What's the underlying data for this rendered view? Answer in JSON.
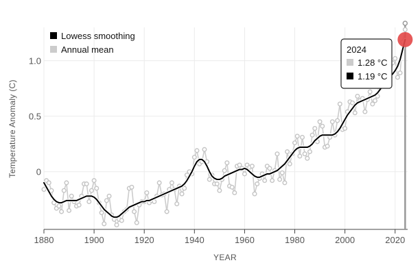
{
  "chart_data": {
    "type": "line",
    "xlabel": "YEAR",
    "ylabel": "Temperature Anomaly (C)",
    "xlim": [
      1880,
      2025
    ],
    "ylim": [
      -0.52,
      1.3
    ],
    "xticks": [
      1880,
      1900,
      1920,
      1940,
      1960,
      1980,
      2000,
      2020
    ],
    "yticks": [
      0,
      0.5,
      1.0
    ],
    "ytick_labels": [
      "0",
      "0.5",
      "1.0"
    ],
    "grid": true,
    "legend_position": "top-left",
    "colors": {
      "lowess": "#000000",
      "annual": "#cccccc",
      "highlight": "#e34848",
      "grid": "#ebebeb"
    },
    "x": [
      1880,
      1881,
      1882,
      1883,
      1884,
      1885,
      1886,
      1887,
      1888,
      1889,
      1890,
      1891,
      1892,
      1893,
      1894,
      1895,
      1896,
      1897,
      1898,
      1899,
      1900,
      1901,
      1902,
      1903,
      1904,
      1905,
      1906,
      1907,
      1908,
      1909,
      1910,
      1911,
      1912,
      1913,
      1914,
      1915,
      1916,
      1917,
      1918,
      1919,
      1920,
      1921,
      1922,
      1923,
      1924,
      1925,
      1926,
      1927,
      1928,
      1929,
      1930,
      1931,
      1932,
      1933,
      1934,
      1935,
      1936,
      1937,
      1938,
      1939,
      1940,
      1941,
      1942,
      1943,
      1944,
      1945,
      1946,
      1947,
      1948,
      1949,
      1950,
      1951,
      1952,
      1953,
      1954,
      1955,
      1956,
      1957,
      1958,
      1959,
      1960,
      1961,
      1962,
      1963,
      1964,
      1965,
      1966,
      1967,
      1968,
      1969,
      1970,
      1971,
      1972,
      1973,
      1974,
      1975,
      1976,
      1977,
      1978,
      1979,
      1980,
      1981,
      1982,
      1983,
      1984,
      1985,
      1986,
      1987,
      1988,
      1989,
      1990,
      1991,
      1992,
      1993,
      1994,
      1995,
      1996,
      1997,
      1998,
      1999,
      2000,
      2001,
      2002,
      2003,
      2004,
      2005,
      2006,
      2007,
      2008,
      2009,
      2010,
      2011,
      2012,
      2013,
      2014,
      2015,
      2016,
      2017,
      2018,
      2019,
      2020,
      2021,
      2022,
      2023,
      2024
    ],
    "series": [
      {
        "name": "Lowess smoothing",
        "values": [
          -0.1,
          -0.14,
          -0.18,
          -0.22,
          -0.25,
          -0.27,
          -0.28,
          -0.28,
          -0.27,
          -0.26,
          -0.26,
          -0.26,
          -0.26,
          -0.26,
          -0.25,
          -0.24,
          -0.23,
          -0.22,
          -0.22,
          -0.22,
          -0.23,
          -0.25,
          -0.28,
          -0.31,
          -0.34,
          -0.36,
          -0.38,
          -0.4,
          -0.41,
          -0.41,
          -0.4,
          -0.38,
          -0.36,
          -0.34,
          -0.32,
          -0.31,
          -0.3,
          -0.29,
          -0.28,
          -0.27,
          -0.27,
          -0.26,
          -0.26,
          -0.25,
          -0.24,
          -0.23,
          -0.22,
          -0.21,
          -0.2,
          -0.19,
          -0.18,
          -0.17,
          -0.16,
          -0.15,
          -0.14,
          -0.13,
          -0.11,
          -0.08,
          -0.04,
          0.0,
          0.05,
          0.09,
          0.11,
          0.11,
          0.09,
          0.05,
          0.0,
          -0.04,
          -0.06,
          -0.07,
          -0.07,
          -0.06,
          -0.04,
          -0.03,
          -0.02,
          -0.01,
          0.0,
          0.01,
          0.02,
          0.02,
          0.03,
          0.02,
          0.0,
          -0.02,
          -0.04,
          -0.05,
          -0.05,
          -0.04,
          -0.03,
          -0.02,
          -0.02,
          -0.01,
          0.0,
          0.01,
          0.03,
          0.05,
          0.07,
          0.1,
          0.13,
          0.16,
          0.19,
          0.21,
          0.22,
          0.22,
          0.22,
          0.22,
          0.23,
          0.25,
          0.28,
          0.3,
          0.32,
          0.33,
          0.33,
          0.33,
          0.33,
          0.33,
          0.34,
          0.36,
          0.39,
          0.43,
          0.47,
          0.51,
          0.54,
          0.57,
          0.6,
          0.62,
          0.63,
          0.64,
          0.65,
          0.66,
          0.67,
          0.68,
          0.69,
          0.71,
          0.74,
          0.77,
          0.8,
          0.83,
          0.86,
          0.88,
          0.91,
          0.95,
          1.01,
          1.1,
          1.19
        ]
      },
      {
        "name": "Annual mean",
        "values": [
          -0.16,
          -0.08,
          -0.1,
          -0.17,
          -0.28,
          -0.33,
          -0.31,
          -0.36,
          -0.17,
          -0.1,
          -0.35,
          -0.22,
          -0.27,
          -0.31,
          -0.3,
          -0.22,
          -0.11,
          -0.11,
          -0.27,
          -0.17,
          -0.08,
          -0.15,
          -0.28,
          -0.37,
          -0.47,
          -0.26,
          -0.22,
          -0.39,
          -0.43,
          -0.48,
          -0.43,
          -0.44,
          -0.36,
          -0.34,
          -0.15,
          -0.14,
          -0.36,
          -0.46,
          -0.3,
          -0.27,
          -0.27,
          -0.19,
          -0.28,
          -0.26,
          -0.27,
          -0.22,
          -0.1,
          -0.21,
          -0.2,
          -0.36,
          -0.16,
          -0.1,
          -0.16,
          -0.29,
          -0.13,
          -0.2,
          -0.15,
          -0.03,
          0.0,
          -0.02,
          0.13,
          0.19,
          0.07,
          0.09,
          0.2,
          0.09,
          -0.07,
          -0.03,
          -0.11,
          -0.11,
          -0.17,
          -0.07,
          0.01,
          0.08,
          -0.13,
          -0.14,
          -0.19,
          0.05,
          0.06,
          0.03,
          -0.02,
          0.06,
          0.04,
          0.05,
          -0.2,
          -0.11,
          -0.06,
          -0.02,
          -0.08,
          0.05,
          0.03,
          -0.08,
          0.01,
          0.16,
          -0.07,
          -0.01,
          -0.1,
          0.18,
          0.07,
          0.16,
          0.26,
          0.32,
          0.14,
          0.31,
          0.16,
          0.12,
          0.18,
          0.33,
          0.39,
          0.27,
          0.45,
          0.41,
          0.22,
          0.23,
          0.31,
          0.45,
          0.33,
          0.46,
          0.61,
          0.38,
          0.39,
          0.54,
          0.63,
          0.62,
          0.53,
          0.68,
          0.64,
          0.66,
          0.54,
          0.65,
          0.72,
          0.61,
          0.64,
          0.68,
          0.75,
          0.9,
          1.01,
          0.92,
          0.85,
          0.98,
          1.02,
          0.85,
          0.89,
          1.17,
          1.28
        ]
      }
    ],
    "legend": {
      "items": [
        {
          "label": "Lowess smoothing"
        },
        {
          "label": "Annual mean"
        }
      ]
    },
    "tooltip": {
      "year": "2024",
      "annual": "1.28 °C",
      "lowess": "1.19 °C"
    },
    "highlight_year": 2024
  }
}
